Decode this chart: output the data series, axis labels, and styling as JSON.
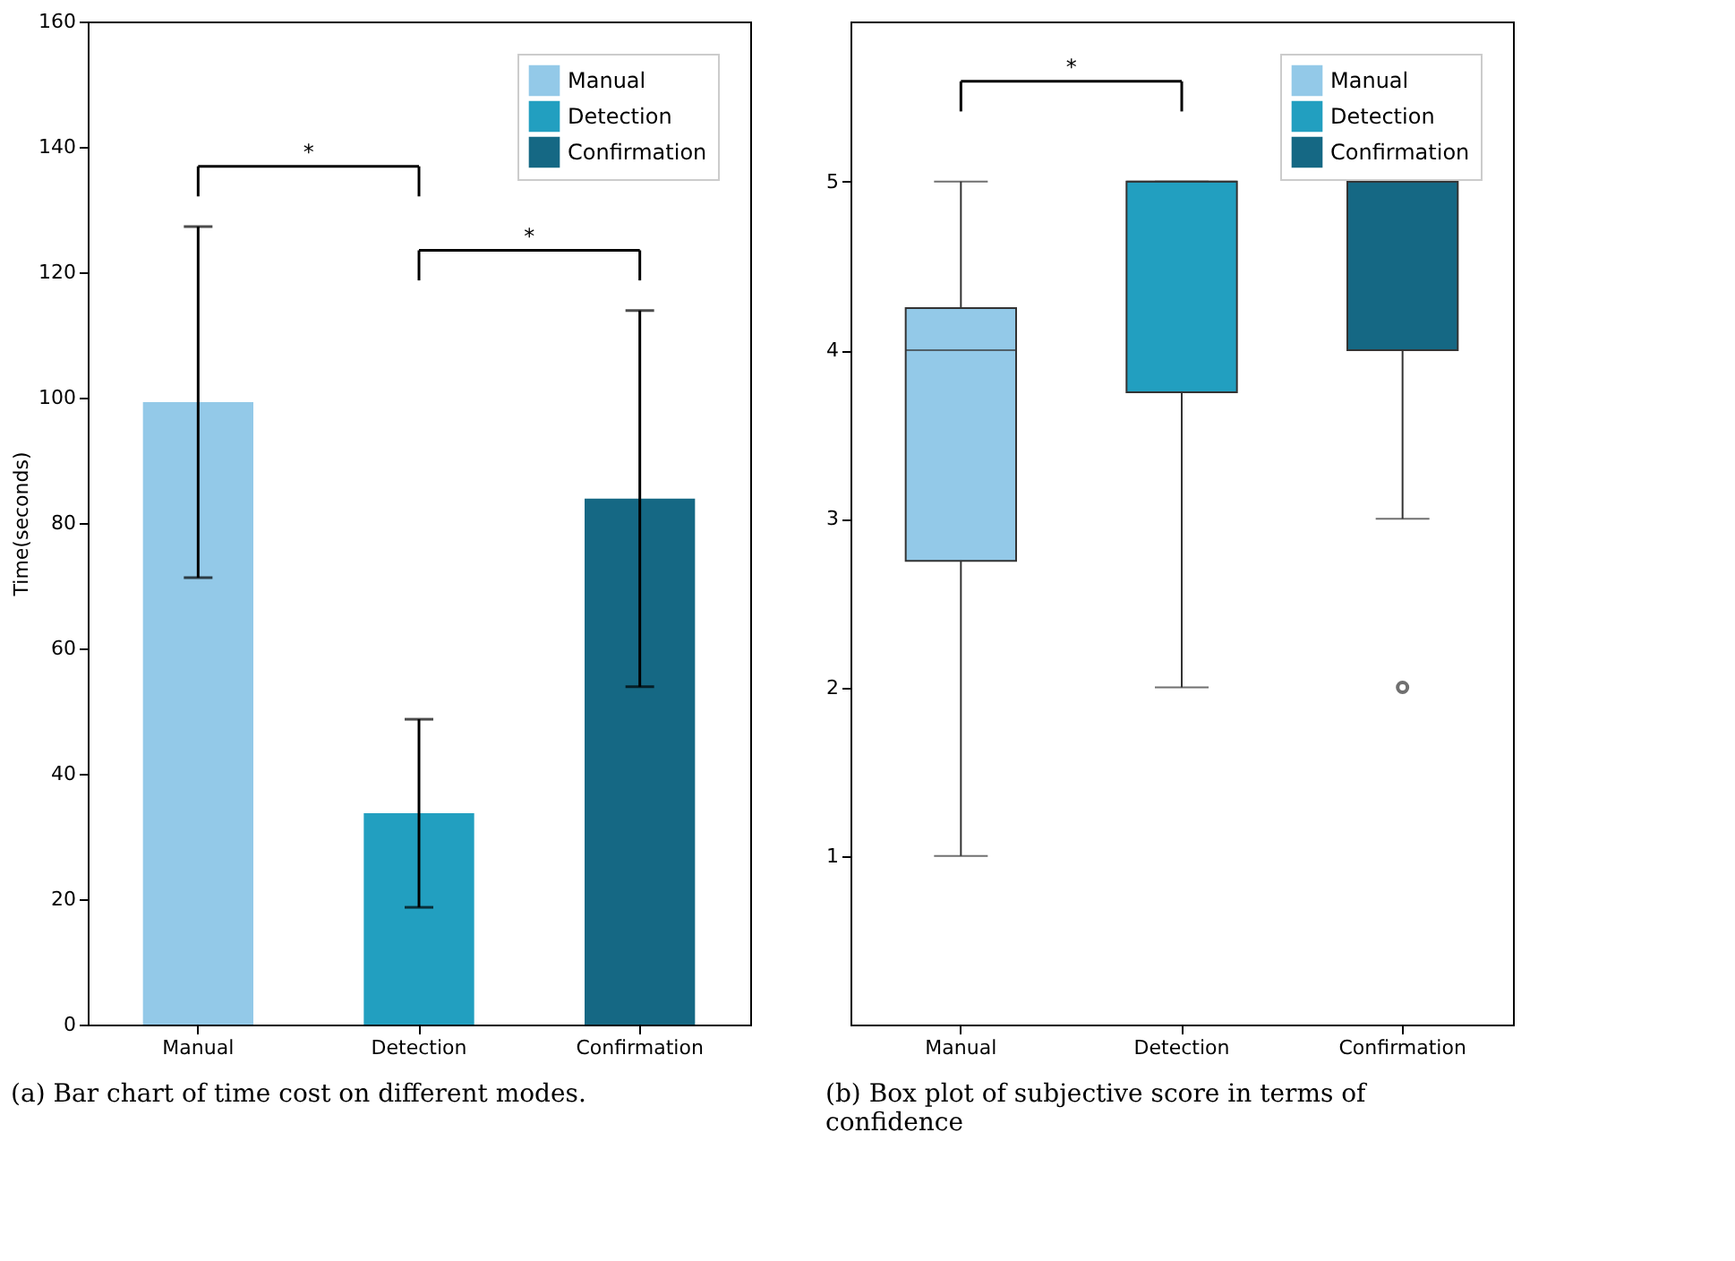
{
  "chart_data": [
    {
      "type": "bar",
      "title": "(a) Bar chart of time cost on different modes.",
      "ylabel": "Time(seconds)",
      "categories": [
        "Manual",
        "Detection",
        "Confirmation"
      ],
      "series": [
        {
          "name": "Manual",
          "color": "#93c9e8",
          "values": [
            99.3,
            null,
            null
          ],
          "errors": [
            28,
            null,
            null
          ]
        },
        {
          "name": "Detection",
          "color": "#229fc0",
          "values": [
            null,
            33.7,
            null
          ],
          "errors": [
            null,
            15,
            null
          ]
        },
        {
          "name": "Confirmation",
          "color": "#156884",
          "values": [
            null,
            null,
            83.9
          ],
          "errors": [
            null,
            null,
            30
          ]
        }
      ],
      "ylim": [
        0,
        160
      ],
      "yticks": [
        0,
        20,
        40,
        60,
        80,
        100,
        120,
        140,
        160
      ],
      "grid": false,
      "legend": "top right",
      "annotations": [
        "*",
        "*"
      ]
    },
    {
      "type": "box",
      "title": "(b) Box plot of subjective score in terms of confidence",
      "categories": [
        "Manual",
        "Detection",
        "Confirmation"
      ],
      "series": [
        {
          "name": "Manual",
          "color": "#93c9e8",
          "boxes": [
            {
              "low": 1,
              "q1": 2.75,
              "median": 4,
              "q3": 4.25,
              "high": 5
            },
            null,
            null
          ]
        },
        {
          "name": "Detection",
          "color": "#229fc0",
          "boxes": [
            null,
            {
              "low": 2,
              "q1": 3.75,
              "median": 5,
              "q3": 5,
              "high": 5
            },
            null
          ]
        },
        {
          "name": "Confirmation",
          "color": "#156884",
          "boxes": [
            null,
            null,
            {
              "low": 3,
              "q1": 4,
              "median": 5,
              "q3": 5,
              "high": 5,
              "outliers": [
                2
              ]
            }
          ]
        }
      ],
      "ylim": [
        0,
        5.95
      ],
      "yticks": [
        1,
        2,
        3,
        4,
        5
      ],
      "grid": false,
      "legend": "top right",
      "annotations": [
        "*"
      ]
    }
  ]
}
